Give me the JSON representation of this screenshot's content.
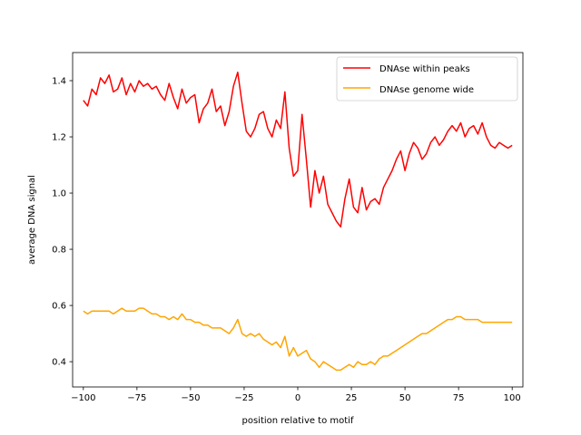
{
  "chart_data": {
    "type": "line",
    "title": "",
    "xlabel": "position relative to motif",
    "ylabel": "average DNA signal",
    "xlim": [
      -105,
      105
    ],
    "ylim": [
      0.31,
      1.5
    ],
    "xticks": [
      -100,
      -75,
      -50,
      -25,
      0,
      25,
      50,
      75,
      100
    ],
    "xtick_labels": [
      "−100",
      "−75",
      "−50",
      "−25",
      "0",
      "25",
      "50",
      "75",
      "100"
    ],
    "yticks": [
      0.4,
      0.6,
      0.8,
      1.0,
      1.2,
      1.4
    ],
    "ytick_labels": [
      "0.4",
      "0.6",
      "0.8",
      "1.0",
      "1.2",
      "1.4"
    ],
    "grid": false,
    "legend_position": "top-right",
    "series": [
      {
        "name": "DNAse within peaks",
        "color": "#ff0000",
        "x": [
          -100,
          -98,
          -96,
          -94,
          -92,
          -90,
          -88,
          -86,
          -84,
          -82,
          -80,
          -78,
          -76,
          -74,
          -72,
          -70,
          -68,
          -66,
          -64,
          -62,
          -60,
          -58,
          -56,
          -54,
          -52,
          -50,
          -48,
          -46,
          -44,
          -42,
          -40,
          -38,
          -36,
          -34,
          -32,
          -30,
          -28,
          -26,
          -24,
          -22,
          -20,
          -18,
          -16,
          -14,
          -12,
          -10,
          -8,
          -6,
          -4,
          -2,
          0,
          2,
          4,
          6,
          8,
          10,
          12,
          14,
          16,
          18,
          20,
          22,
          24,
          26,
          28,
          30,
          32,
          34,
          36,
          38,
          40,
          42,
          44,
          46,
          48,
          50,
          52,
          54,
          56,
          58,
          60,
          62,
          64,
          66,
          68,
          70,
          72,
          74,
          76,
          78,
          80,
          82,
          84,
          86,
          88,
          90,
          92,
          94,
          96,
          98,
          100
        ],
        "y": [
          1.33,
          1.31,
          1.37,
          1.35,
          1.41,
          1.39,
          1.42,
          1.36,
          1.37,
          1.41,
          1.35,
          1.39,
          1.36,
          1.4,
          1.38,
          1.39,
          1.37,
          1.38,
          1.35,
          1.33,
          1.39,
          1.34,
          1.3,
          1.37,
          1.32,
          1.34,
          1.35,
          1.25,
          1.3,
          1.32,
          1.37,
          1.29,
          1.31,
          1.24,
          1.29,
          1.38,
          1.43,
          1.32,
          1.22,
          1.2,
          1.23,
          1.28,
          1.29,
          1.23,
          1.2,
          1.26,
          1.23,
          1.36,
          1.16,
          1.06,
          1.08,
          1.28,
          1.12,
          0.95,
          1.08,
          1.0,
          1.06,
          0.96,
          0.93,
          0.9,
          0.88,
          0.98,
          1.05,
          0.95,
          0.93,
          1.02,
          0.94,
          0.97,
          0.98,
          0.96,
          1.02,
          1.05,
          1.08,
          1.12,
          1.15,
          1.08,
          1.14,
          1.18,
          1.16,
          1.12,
          1.14,
          1.18,
          1.2,
          1.17,
          1.19,
          1.22,
          1.24,
          1.22,
          1.25,
          1.2,
          1.23,
          1.24,
          1.21,
          1.25,
          1.2,
          1.17,
          1.16,
          1.18,
          1.17,
          1.16,
          1.17
        ]
      },
      {
        "name": "DNAse genome wide",
        "color": "#ffa500",
        "x": [
          -100,
          -98,
          -96,
          -94,
          -92,
          -90,
          -88,
          -86,
          -84,
          -82,
          -80,
          -78,
          -76,
          -74,
          -72,
          -70,
          -68,
          -66,
          -64,
          -62,
          -60,
          -58,
          -56,
          -54,
          -52,
          -50,
          -48,
          -46,
          -44,
          -42,
          -40,
          -38,
          -36,
          -34,
          -32,
          -30,
          -28,
          -26,
          -24,
          -22,
          -20,
          -18,
          -16,
          -14,
          -12,
          -10,
          -8,
          -6,
          -4,
          -2,
          0,
          2,
          4,
          6,
          8,
          10,
          12,
          14,
          16,
          18,
          20,
          22,
          24,
          26,
          28,
          30,
          32,
          34,
          36,
          38,
          40,
          42,
          44,
          46,
          48,
          50,
          52,
          54,
          56,
          58,
          60,
          62,
          64,
          66,
          68,
          70,
          72,
          74,
          76,
          78,
          80,
          82,
          84,
          86,
          88,
          90,
          92,
          94,
          96,
          98,
          100
        ],
        "y": [
          0.58,
          0.57,
          0.58,
          0.58,
          0.58,
          0.58,
          0.58,
          0.57,
          0.58,
          0.59,
          0.58,
          0.58,
          0.58,
          0.59,
          0.59,
          0.58,
          0.57,
          0.57,
          0.56,
          0.56,
          0.55,
          0.56,
          0.55,
          0.57,
          0.55,
          0.55,
          0.54,
          0.54,
          0.53,
          0.53,
          0.52,
          0.52,
          0.52,
          0.51,
          0.5,
          0.52,
          0.55,
          0.5,
          0.49,
          0.5,
          0.49,
          0.5,
          0.48,
          0.47,
          0.46,
          0.47,
          0.45,
          0.49,
          0.42,
          0.45,
          0.42,
          0.43,
          0.44,
          0.41,
          0.4,
          0.38,
          0.4,
          0.39,
          0.38,
          0.37,
          0.37,
          0.38,
          0.39,
          0.38,
          0.4,
          0.39,
          0.39,
          0.4,
          0.39,
          0.41,
          0.42,
          0.42,
          0.43,
          0.44,
          0.45,
          0.46,
          0.47,
          0.48,
          0.49,
          0.5,
          0.5,
          0.51,
          0.52,
          0.53,
          0.54,
          0.55,
          0.55,
          0.56,
          0.56,
          0.55,
          0.55,
          0.55,
          0.55,
          0.54,
          0.54,
          0.54,
          0.54,
          0.54,
          0.54,
          0.54,
          0.54
        ]
      }
    ]
  },
  "colors": {
    "background": "#ffffff",
    "axis": "#000000",
    "legend_border": "#cccccc"
  }
}
